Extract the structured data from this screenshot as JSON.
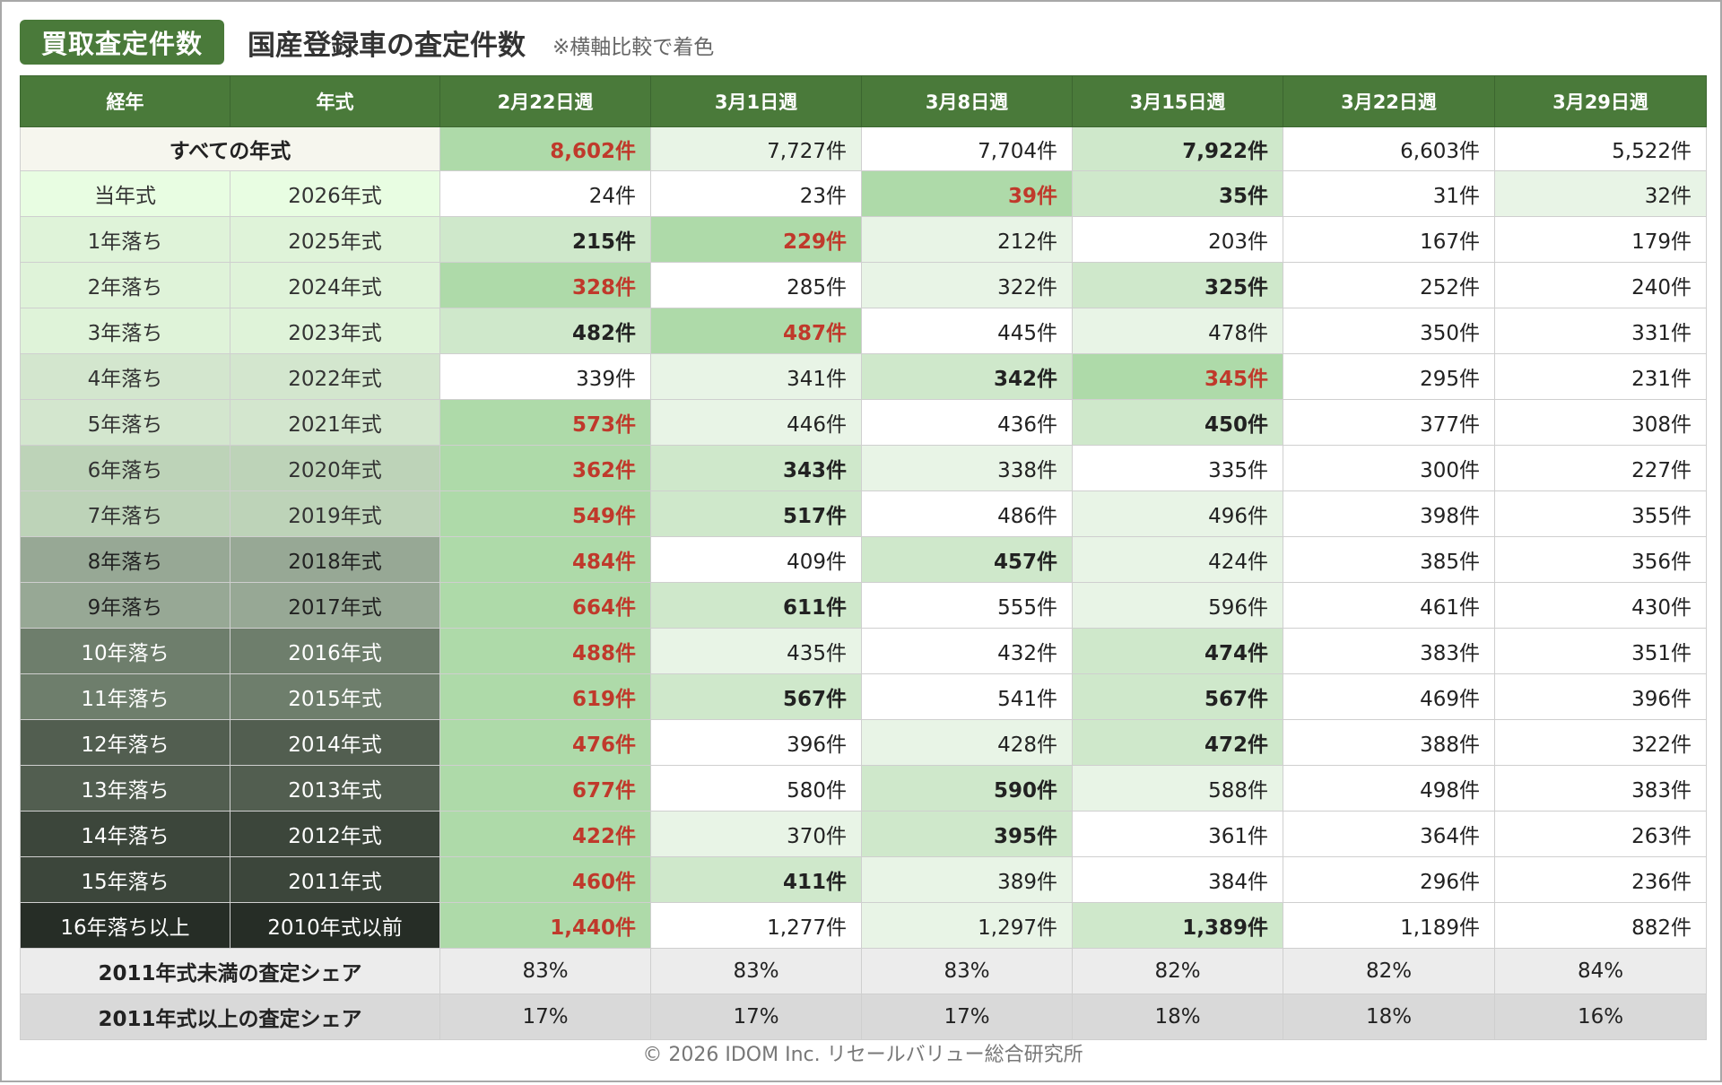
{
  "header": {
    "badge": "買取査定件数",
    "title": "国産登録車の査定件数",
    "note": "※横軸比較で着色"
  },
  "footer": "© 2026 IDOM Inc. リセールバリュー総合研究所",
  "colors": {
    "header_green": "#4a7a3a",
    "highlight_red": "#c0392b",
    "cell_shades": [
      "#ffffff",
      "#e8f4e6",
      "#cfe8cb",
      "#aedaa9"
    ]
  },
  "chart_data": {
    "type": "table",
    "columns": [
      "経年",
      "年式",
      "2月22日週",
      "3月1日週",
      "3月8日週",
      "3月15日週",
      "3月22日週",
      "3月29日週"
    ],
    "total_row": {
      "label": "すべての年式",
      "values": [
        "8,602件",
        "7,727件",
        "7,704件",
        "7,922件",
        "6,603件",
        "5,522件"
      ],
      "style": [
        "r",
        "",
        "",
        "b",
        "",
        ""
      ],
      "shade": [
        3,
        1,
        0,
        2,
        0,
        0
      ]
    },
    "rows": [
      {
        "age": "当年式",
        "year": "2026年式",
        "label_bg": "#e8fde2",
        "label_fg": "#333333",
        "values": [
          "24件",
          "23件",
          "39件",
          "35件",
          "31件",
          "32件"
        ],
        "style": [
          "",
          "",
          "r",
          "b",
          "",
          ""
        ],
        "shade": [
          0,
          0,
          3,
          2,
          0,
          1
        ]
      },
      {
        "age": "1年落ち",
        "year": "2025年式",
        "label_bg": "#dff3d9",
        "label_fg": "#333333",
        "values": [
          "215件",
          "229件",
          "212件",
          "203件",
          "167件",
          "179件"
        ],
        "style": [
          "b",
          "r",
          "",
          "",
          "",
          ""
        ],
        "shade": [
          2,
          3,
          1,
          0,
          0,
          0
        ]
      },
      {
        "age": "2年落ち",
        "year": "2024年式",
        "label_bg": "#dff3d9",
        "label_fg": "#333333",
        "values": [
          "328件",
          "285件",
          "322件",
          "325件",
          "252件",
          "240件"
        ],
        "style": [
          "r",
          "",
          "",
          "b",
          "",
          ""
        ],
        "shade": [
          3,
          0,
          1,
          2,
          0,
          0
        ]
      },
      {
        "age": "3年落ち",
        "year": "2023年式",
        "label_bg": "#dff3d9",
        "label_fg": "#333333",
        "values": [
          "482件",
          "487件",
          "445件",
          "478件",
          "350件",
          "331件"
        ],
        "style": [
          "b",
          "r",
          "",
          "",
          "",
          ""
        ],
        "shade": [
          2,
          3,
          0,
          1,
          0,
          0
        ]
      },
      {
        "age": "4年落ち",
        "year": "2022年式",
        "label_bg": "#d3e6ce",
        "label_fg": "#333333",
        "values": [
          "339件",
          "341件",
          "342件",
          "345件",
          "295件",
          "231件"
        ],
        "style": [
          "",
          "",
          "b",
          "r",
          "",
          ""
        ],
        "shade": [
          0,
          1,
          2,
          3,
          0,
          0
        ]
      },
      {
        "age": "5年落ち",
        "year": "2021年式",
        "label_bg": "#d3e6ce",
        "label_fg": "#333333",
        "values": [
          "573件",
          "446件",
          "436件",
          "450件",
          "377件",
          "308件"
        ],
        "style": [
          "r",
          "",
          "",
          "b",
          "",
          ""
        ],
        "shade": [
          3,
          1,
          0,
          2,
          0,
          0
        ]
      },
      {
        "age": "6年落ち",
        "year": "2020年式",
        "label_bg": "#bdd3b8",
        "label_fg": "#333333",
        "values": [
          "362件",
          "343件",
          "338件",
          "335件",
          "300件",
          "227件"
        ],
        "style": [
          "r",
          "b",
          "",
          "",
          "",
          ""
        ],
        "shade": [
          3,
          2,
          1,
          0,
          0,
          0
        ]
      },
      {
        "age": "7年落ち",
        "year": "2019年式",
        "label_bg": "#bdd3b8",
        "label_fg": "#333333",
        "values": [
          "549件",
          "517件",
          "486件",
          "496件",
          "398件",
          "355件"
        ],
        "style": [
          "r",
          "b",
          "",
          "",
          "",
          ""
        ],
        "shade": [
          3,
          2,
          0,
          1,
          0,
          0
        ]
      },
      {
        "age": "8年落ち",
        "year": "2018年式",
        "label_bg": "#97a895",
        "label_fg": "#222222",
        "values": [
          "484件",
          "409件",
          "457件",
          "424件",
          "385件",
          "356件"
        ],
        "style": [
          "r",
          "",
          "b",
          "",
          "",
          ""
        ],
        "shade": [
          3,
          0,
          2,
          1,
          0,
          0
        ]
      },
      {
        "age": "9年落ち",
        "year": "2017年式",
        "label_bg": "#97a895",
        "label_fg": "#222222",
        "values": [
          "664件",
          "611件",
          "555件",
          "596件",
          "461件",
          "430件"
        ],
        "style": [
          "r",
          "b",
          "",
          "",
          "",
          ""
        ],
        "shade": [
          3,
          2,
          0,
          1,
          0,
          0
        ]
      },
      {
        "age": "10年落ち",
        "year": "2016年式",
        "label_bg": "#6e7e6c",
        "label_fg": "#ffffff",
        "values": [
          "488件",
          "435件",
          "432件",
          "474件",
          "383件",
          "351件"
        ],
        "style": [
          "r",
          "",
          "",
          "b",
          "",
          ""
        ],
        "shade": [
          3,
          1,
          0,
          2,
          0,
          0
        ]
      },
      {
        "age": "11年落ち",
        "year": "2015年式",
        "label_bg": "#6e7e6c",
        "label_fg": "#ffffff",
        "values": [
          "619件",
          "567件",
          "541件",
          "567件",
          "469件",
          "396件"
        ],
        "style": [
          "r",
          "b",
          "",
          "b",
          "",
          ""
        ],
        "shade": [
          3,
          2,
          0,
          2,
          0,
          0
        ]
      },
      {
        "age": "12年落ち",
        "year": "2014年式",
        "label_bg": "#525e50",
        "label_fg": "#ffffff",
        "values": [
          "476件",
          "396件",
          "428件",
          "472件",
          "388件",
          "322件"
        ],
        "style": [
          "r",
          "",
          "",
          "b",
          "",
          ""
        ],
        "shade": [
          3,
          0,
          1,
          2,
          0,
          0
        ]
      },
      {
        "age": "13年落ち",
        "year": "2013年式",
        "label_bg": "#525e50",
        "label_fg": "#ffffff",
        "values": [
          "677件",
          "580件",
          "590件",
          "588件",
          "498件",
          "383件"
        ],
        "style": [
          "r",
          "",
          "b",
          "",
          "",
          ""
        ],
        "shade": [
          3,
          0,
          2,
          1,
          0,
          0
        ]
      },
      {
        "age": "14年落ち",
        "year": "2012年式",
        "label_bg": "#3c463b",
        "label_fg": "#ffffff",
        "values": [
          "422件",
          "370件",
          "395件",
          "361件",
          "364件",
          "263件"
        ],
        "style": [
          "r",
          "",
          "b",
          "",
          "",
          ""
        ],
        "shade": [
          3,
          1,
          2,
          0,
          0,
          0
        ]
      },
      {
        "age": "15年落ち",
        "year": "2011年式",
        "label_bg": "#3c463b",
        "label_fg": "#ffffff",
        "values": [
          "460件",
          "411件",
          "389件",
          "384件",
          "296件",
          "236件"
        ],
        "style": [
          "r",
          "b",
          "",
          "",
          "",
          ""
        ],
        "shade": [
          3,
          2,
          1,
          0,
          0,
          0
        ]
      },
      {
        "age": "16年落ち以上",
        "year": "2010年式以前",
        "label_bg": "#262d26",
        "label_fg": "#ffffff",
        "values": [
          "1,440件",
          "1,277件",
          "1,297件",
          "1,389件",
          "1,189件",
          "882件"
        ],
        "style": [
          "r",
          "",
          "",
          "b",
          "",
          ""
        ],
        "shade": [
          3,
          0,
          1,
          2,
          0,
          0
        ]
      }
    ],
    "share_rows": [
      {
        "label": "2011年式未満の査定シェア",
        "bg": "#ececec",
        "values": [
          "83%",
          "83%",
          "83%",
          "82%",
          "82%",
          "84%"
        ]
      },
      {
        "label": "2011年式以上の査定シェア",
        "bg": "#d9d9d9",
        "values": [
          "17%",
          "17%",
          "17%",
          "18%",
          "18%",
          "16%"
        ]
      }
    ]
  }
}
